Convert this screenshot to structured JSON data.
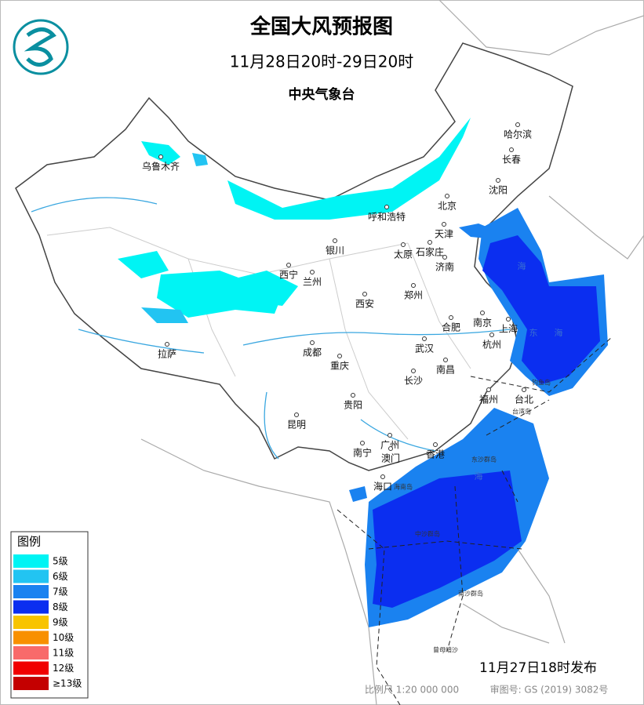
{
  "header": {
    "title": "全国大风预报图",
    "subtitle": "11月28日20时-29日20时",
    "issuer": "中央气象台"
  },
  "legend": {
    "title": "图例",
    "items": [
      {
        "label": "5级",
        "color": "#00f4f4"
      },
      {
        "label": "6级",
        "color": "#22c4f2"
      },
      {
        "label": "7级",
        "color": "#1a82f0"
      },
      {
        "label": "8级",
        "color": "#0b2ef0"
      },
      {
        "label": "9级",
        "color": "#f8c400"
      },
      {
        "label": "10级",
        "color": "#f89000"
      },
      {
        "label": "11级",
        "color": "#f86a6a"
      },
      {
        "label": "12级",
        "color": "#f00000"
      },
      {
        "label": "≥13级",
        "color": "#c40000"
      }
    ]
  },
  "map": {
    "cities": [
      "乌鲁木齐",
      "哈尔滨",
      "长春",
      "沈阳",
      "北京",
      "天津",
      "呼和浩特",
      "银川",
      "太原",
      "石家庄",
      "济南",
      "西宁",
      "兰州",
      "郑州",
      "西安",
      "合肥",
      "南京",
      "上海",
      "杭州",
      "成都",
      "武汉",
      "拉萨",
      "重庆",
      "南昌",
      "长沙",
      "福州",
      "台北",
      "贵阳",
      "昆明",
      "广州",
      "南宁",
      "澳门",
      "香港",
      "海口"
    ],
    "places": [
      "海南岛",
      "台湾岛",
      "东沙群岛",
      "中沙群岛",
      "南沙群岛",
      "曾母暗沙",
      "钓鱼岛"
    ],
    "seas": [
      "海",
      "东",
      "海",
      "海"
    ]
  },
  "footer": {
    "issued": "11月27日18时发布",
    "scale": "比例尺 1:20 000 000",
    "approval": "审图号: GS (2019) 3082号"
  }
}
